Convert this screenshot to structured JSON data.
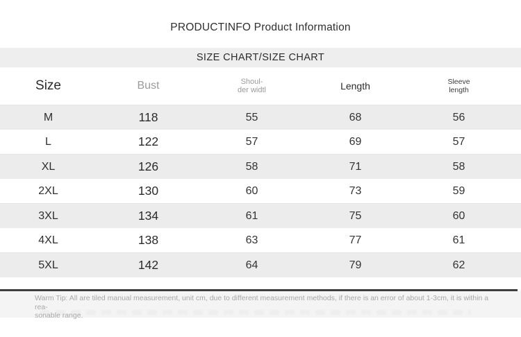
{
  "page": {
    "title": "PRODUCTINFO Product Information",
    "section_header": "SIZE CHART/SIZE CHART"
  },
  "colors": {
    "band_bg": "#eeeeee",
    "row_stripe_bg": "#ececec",
    "tip_strip_bg": "#f4f4f4",
    "divider_rule": "#3d3d3d",
    "text_dark": "#2e2e2e",
    "header_gray_text": "#9b9b9b",
    "tip_text": "#a8a8a8"
  },
  "table": {
    "columns": [
      {
        "label": "Size"
      },
      {
        "label": "Bust"
      },
      {
        "label_line1": "Shoul-",
        "label_line2": "der widtl"
      },
      {
        "label": "Length"
      },
      {
        "label_line1": "Sleeve",
        "label_line2": "length"
      }
    ],
    "rows": [
      {
        "size": "M",
        "bust": "118",
        "shoulder": "55",
        "length": "68",
        "sleeve": "56"
      },
      {
        "size": "L",
        "bust": "122",
        "shoulder": "57",
        "length": "69",
        "sleeve": "57"
      },
      {
        "size": "XL",
        "bust": "126",
        "shoulder": "58",
        "length": "71",
        "sleeve": "58"
      },
      {
        "size": "2XL",
        "bust": "130",
        "shoulder": "60",
        "length": "73",
        "sleeve": "59"
      },
      {
        "size": "3XL",
        "bust": "134",
        "shoulder": "61",
        "length": "75",
        "sleeve": "60"
      },
      {
        "size": "4XL",
        "bust": "138",
        "shoulder": "63",
        "length": "77",
        "sleeve": "61"
      },
      {
        "size": "5XL",
        "bust": "142",
        "shoulder": "64",
        "length": "79",
        "sleeve": "62"
      }
    ]
  },
  "warm_tip": {
    "line1": "Warm Tip: All are tiled manual measurement, unit cm, due to different measurement methods, if there is an error of about 1-3cm, it is within a rea-",
    "line2": "sonable range."
  },
  "chart_data": {
    "type": "table",
    "title": "SIZE CHART/SIZE CHART",
    "columns": [
      "Size",
      "Bust",
      "Shoulder width",
      "Length",
      "Sleeve length"
    ],
    "unit": "cm",
    "rows": [
      [
        "M",
        118,
        55,
        68,
        56
      ],
      [
        "L",
        122,
        57,
        69,
        57
      ],
      [
        "XL",
        126,
        58,
        71,
        58
      ],
      [
        "2XL",
        130,
        60,
        73,
        59
      ],
      [
        "3XL",
        134,
        61,
        75,
        60
      ],
      [
        "4XL",
        138,
        63,
        77,
        61
      ],
      [
        "5XL",
        142,
        64,
        79,
        62
      ]
    ]
  }
}
